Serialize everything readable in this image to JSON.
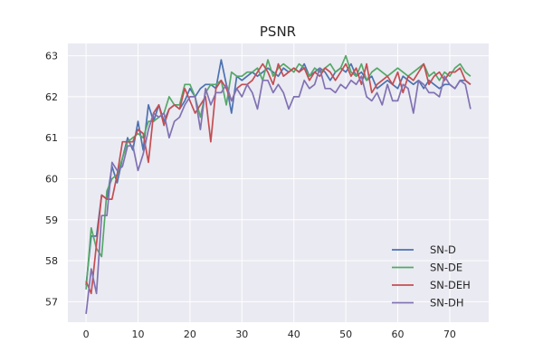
{
  "chart_data": {
    "type": "line",
    "title": "PSNR",
    "xlabel": "",
    "ylabel": "",
    "xlim": [
      -3.5,
      77.5
    ],
    "ylim": [
      56.5,
      63.3
    ],
    "xticks": [
      0,
      10,
      20,
      30,
      40,
      50,
      60,
      70
    ],
    "yticks": [
      57,
      58,
      59,
      60,
      61,
      62,
      63
    ],
    "grid": true,
    "legend_position": "lower-right",
    "x": [
      0,
      1,
      2,
      3,
      4,
      5,
      6,
      7,
      8,
      9,
      10,
      11,
      12,
      13,
      14,
      15,
      16,
      17,
      18,
      19,
      20,
      21,
      22,
      23,
      24,
      25,
      26,
      27,
      28,
      29,
      30,
      31,
      32,
      33,
      34,
      35,
      36,
      37,
      38,
      39,
      40,
      41,
      42,
      43,
      44,
      45,
      46,
      47,
      48,
      49,
      50,
      51,
      52,
      53,
      54,
      55,
      56,
      57,
      58,
      59,
      60,
      61,
      62,
      63,
      64,
      65,
      66,
      67,
      68,
      69,
      70,
      71,
      72,
      73,
      74
    ],
    "series": [
      {
        "name": "SN-D",
        "color": "#4c72b0",
        "values": [
          57.4,
          58.6,
          58.6,
          59.6,
          59.5,
          60.3,
          59.9,
          60.5,
          61.0,
          60.7,
          61.4,
          60.7,
          61.8,
          61.4,
          61.8,
          61.4,
          61.7,
          61.8,
          61.7,
          61.9,
          62.2,
          62.0,
          62.2,
          62.3,
          62.3,
          62.2,
          62.9,
          62.3,
          61.6,
          62.5,
          62.4,
          62.5,
          62.6,
          62.5,
          62.6,
          62.7,
          62.6,
          62.5,
          62.7,
          62.6,
          62.7,
          62.6,
          62.8,
          62.5,
          62.6,
          62.7,
          62.6,
          62.4,
          62.6,
          62.7,
          62.6,
          62.8,
          62.5,
          62.6,
          62.4,
          62.5,
          62.2,
          62.3,
          62.4,
          62.3,
          62.2,
          62.5,
          62.4,
          62.3,
          62.4,
          62.2,
          62.4,
          62.3,
          62.2,
          62.3,
          62.3,
          62.2,
          62.4,
          62.4,
          62.3
        ]
      },
      {
        "name": "SN-DE",
        "color": "#55a868",
        "values": [
          57.3,
          58.8,
          58.3,
          58.1,
          59.7,
          60.0,
          60.1,
          60.5,
          60.9,
          61.0,
          61.1,
          61.0,
          61.4,
          61.4,
          61.5,
          61.6,
          62.0,
          61.8,
          61.8,
          62.3,
          62.3,
          62.0,
          61.5,
          62.1,
          62.3,
          62.3,
          62.4,
          61.8,
          62.6,
          62.5,
          62.5,
          62.6,
          62.6,
          62.7,
          62.4,
          62.9,
          62.5,
          62.7,
          62.8,
          62.7,
          62.6,
          62.8,
          62.7,
          62.5,
          62.7,
          62.6,
          62.7,
          62.8,
          62.6,
          62.7,
          63.0,
          62.6,
          62.5,
          62.8,
          62.4,
          62.6,
          62.7,
          62.6,
          62.5,
          62.6,
          62.7,
          62.6,
          62.5,
          62.6,
          62.7,
          62.8,
          62.5,
          62.6,
          62.4,
          62.6,
          62.5,
          62.7,
          62.8,
          62.6,
          62.5
        ]
      },
      {
        "name": "SN-DEH",
        "color": "#c44e52",
        "values": [
          57.5,
          57.2,
          58.4,
          59.6,
          59.5,
          59.5,
          60.1,
          60.9,
          60.9,
          60.9,
          61.2,
          61.1,
          60.4,
          61.6,
          61.8,
          61.3,
          61.7,
          61.8,
          61.7,
          62.2,
          61.9,
          61.6,
          61.8,
          62.0,
          60.9,
          62.2,
          62.4,
          62.2,
          61.9,
          62.2,
          62.3,
          62.3,
          62.4,
          62.6,
          62.8,
          62.6,
          62.3,
          62.8,
          62.5,
          62.6,
          62.7,
          62.6,
          62.7,
          62.4,
          62.6,
          62.5,
          62.7,
          62.6,
          62.4,
          62.6,
          62.8,
          62.5,
          62.7,
          62.3,
          62.8,
          62.1,
          62.3,
          62.4,
          62.5,
          62.3,
          62.6,
          62.1,
          62.5,
          62.4,
          62.6,
          62.8,
          62.3,
          62.5,
          62.6,
          62.4,
          62.6,
          62.6,
          62.7,
          62.4,
          62.3
        ]
      },
      {
        "name": "SN-DH",
        "color": "#8172b2",
        "values": [
          56.7,
          57.8,
          57.2,
          59.1,
          59.1,
          60.4,
          60.2,
          60.3,
          60.8,
          60.8,
          60.2,
          60.6,
          61.2,
          61.6,
          61.5,
          61.6,
          61.0,
          61.4,
          61.5,
          61.8,
          62.0,
          62.0,
          61.2,
          62.2,
          61.8,
          62.1,
          62.1,
          62.3,
          61.9,
          62.2,
          62.0,
          62.3,
          62.1,
          61.7,
          62.4,
          62.4,
          62.1,
          62.3,
          62.1,
          61.7,
          62.0,
          62.0,
          62.4,
          62.2,
          62.3,
          62.7,
          62.2,
          62.2,
          62.1,
          62.3,
          62.2,
          62.4,
          62.3,
          62.5,
          62.0,
          61.9,
          62.1,
          61.8,
          62.3,
          61.9,
          61.9,
          62.3,
          62.2,
          61.6,
          62.4,
          62.3,
          62.1,
          62.1,
          62.0,
          62.5,
          62.3,
          62.2,
          62.4,
          62.3,
          61.7
        ]
      }
    ]
  }
}
